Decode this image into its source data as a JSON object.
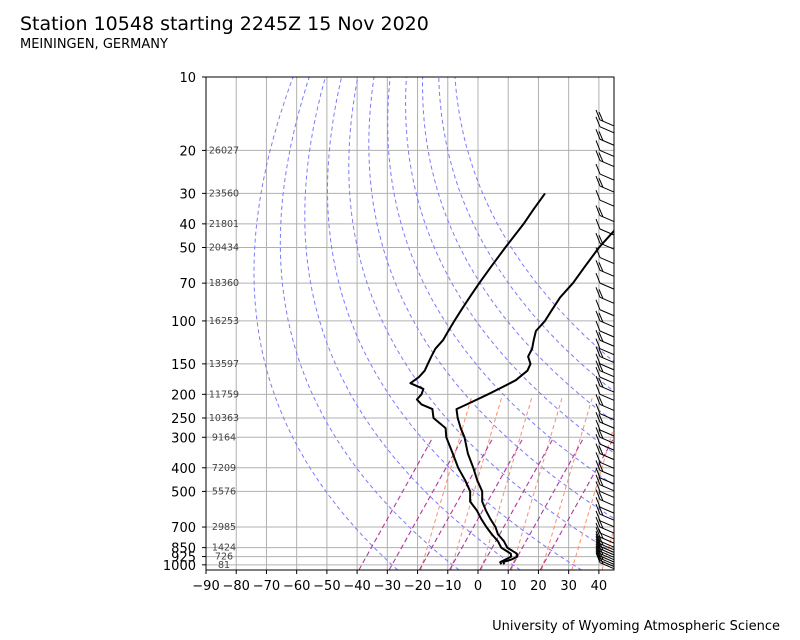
{
  "title": "Station 10548 starting 2245Z 15 Nov 2020",
  "subtitle": "MEININGEN, GERMANY",
  "credit": "University of Wyoming Atmospheric Science",
  "colors": {
    "sounding": "#000000",
    "grid": "#b0b0b0",
    "dry_adiabat": "#7a7aff",
    "moist_adiabat": "#ff8c69",
    "mixing_ratio": "#b03a9e"
  },
  "chart_data": {
    "type": "skew-t log-p",
    "x_axis": {
      "label": "",
      "unit": "°C",
      "ticks": [
        -90,
        -80,
        -70,
        -60,
        -50,
        -40,
        -30,
        -20,
        -10,
        0,
        10,
        20,
        30,
        40
      ],
      "range": [
        -90,
        45
      ]
    },
    "y_axis": {
      "label": "",
      "unit": "hPa",
      "scale": "log",
      "inverted": true,
      "ticks": [
        10,
        20,
        30,
        40,
        50,
        70,
        100,
        150,
        200,
        250,
        300,
        400,
        500,
        700,
        850,
        925,
        1000
      ],
      "range": [
        1050,
        10
      ]
    },
    "grid": true,
    "height_labels": [
      {
        "pressure": 20,
        "text": "26027"
      },
      {
        "pressure": 30,
        "text": "23560"
      },
      {
        "pressure": 40,
        "text": "21801"
      },
      {
        "pressure": 50,
        "text": "20434"
      },
      {
        "pressure": 70,
        "text": "18360"
      },
      {
        "pressure": 100,
        "text": "16253"
      },
      {
        "pressure": 150,
        "text": "13597"
      },
      {
        "pressure": 200,
        "text": "11759"
      },
      {
        "pressure": 250,
        "text": "10363"
      },
      {
        "pressure": 300,
        "text": "9164"
      },
      {
        "pressure": 400,
        "text": "7209"
      },
      {
        "pressure": 500,
        "text": "5576"
      },
      {
        "pressure": 700,
        "text": "2985"
      },
      {
        "pressure": 850,
        "text": "1424"
      },
      {
        "pressure": 925,
        "text": "726"
      },
      {
        "pressure": 1000,
        "text": "81"
      }
    ],
    "series": [
      {
        "key": "temperature",
        "values": [
          [
            995,
            7
          ],
          [
            975,
            6
          ],
          [
            950,
            8
          ],
          [
            925,
            9
          ],
          [
            900,
            8
          ],
          [
            850,
            3
          ],
          [
            800,
            0
          ],
          [
            750,
            -4
          ],
          [
            700,
            -7
          ],
          [
            650,
            -11
          ],
          [
            600,
            -15
          ],
          [
            550,
            -19
          ],
          [
            500,
            -22
          ],
          [
            450,
            -27
          ],
          [
            400,
            -32
          ],
          [
            350,
            -38
          ],
          [
            300,
            -44
          ],
          [
            275,
            -48
          ],
          [
            250,
            -52
          ],
          [
            230,
            -55
          ],
          [
            220,
            -53
          ],
          [
            200,
            -49
          ],
          [
            190,
            -47
          ],
          [
            175,
            -44
          ],
          [
            160,
            -43
          ],
          [
            150,
            -44
          ],
          [
            140,
            -47
          ],
          [
            130,
            -48
          ],
          [
            120,
            -50
          ],
          [
            110,
            -52
          ],
          [
            100,
            -52
          ],
          [
            90,
            -53
          ],
          [
            80,
            -54
          ],
          [
            70,
            -54
          ],
          [
            60,
            -55
          ],
          [
            50,
            -56
          ],
          [
            40,
            -56
          ],
          [
            30,
            -57
          ],
          [
            25,
            -55
          ],
          [
            20,
            -55
          ],
          [
            17,
            -56
          ],
          [
            15,
            -55
          ]
        ]
      },
      {
        "key": "dewpoint",
        "values": [
          [
            995,
            6
          ],
          [
            975,
            5
          ],
          [
            950,
            6
          ],
          [
            925,
            7
          ],
          [
            900,
            6
          ],
          [
            850,
            1
          ],
          [
            800,
            -2
          ],
          [
            750,
            -6
          ],
          [
            700,
            -10
          ],
          [
            650,
            -14
          ],
          [
            600,
            -18
          ],
          [
            550,
            -23
          ],
          [
            500,
            -26
          ],
          [
            450,
            -31
          ],
          [
            400,
            -37
          ],
          [
            350,
            -43
          ],
          [
            300,
            -50
          ],
          [
            275,
            -53
          ],
          [
            250,
            -60
          ],
          [
            230,
            -63
          ],
          [
            220,
            -68
          ],
          [
            210,
            -71
          ],
          [
            200,
            -71
          ],
          [
            190,
            -72
          ],
          [
            180,
            -78
          ],
          [
            170,
            -77
          ],
          [
            160,
            -77
          ],
          [
            150,
            -78
          ],
          [
            140,
            -79
          ],
          [
            130,
            -80
          ],
          [
            120,
            -80
          ],
          [
            110,
            -81
          ],
          [
            100,
            -82
          ],
          [
            90,
            -83
          ],
          [
            80,
            -84
          ],
          [
            70,
            -85
          ],
          [
            60,
            -86
          ],
          [
            50,
            -87
          ],
          [
            40,
            -88
          ],
          [
            35,
            -89
          ],
          [
            30,
            -90
          ]
        ]
      }
    ],
    "wind_barb_pressures": [
      980,
      960,
      940,
      920,
      900,
      880,
      860,
      840,
      820,
      800,
      770,
      740,
      700,
      660,
      620,
      580,
      540,
      500,
      470,
      440,
      410,
      380,
      350,
      320,
      300,
      280,
      260,
      240,
      220,
      200,
      185,
      170,
      160,
      150,
      140,
      130,
      120,
      110,
      100,
      90,
      80,
      70,
      62,
      55,
      48,
      42,
      37,
      32,
      28,
      25,
      22,
      20,
      18,
      16,
      15
    ]
  }
}
